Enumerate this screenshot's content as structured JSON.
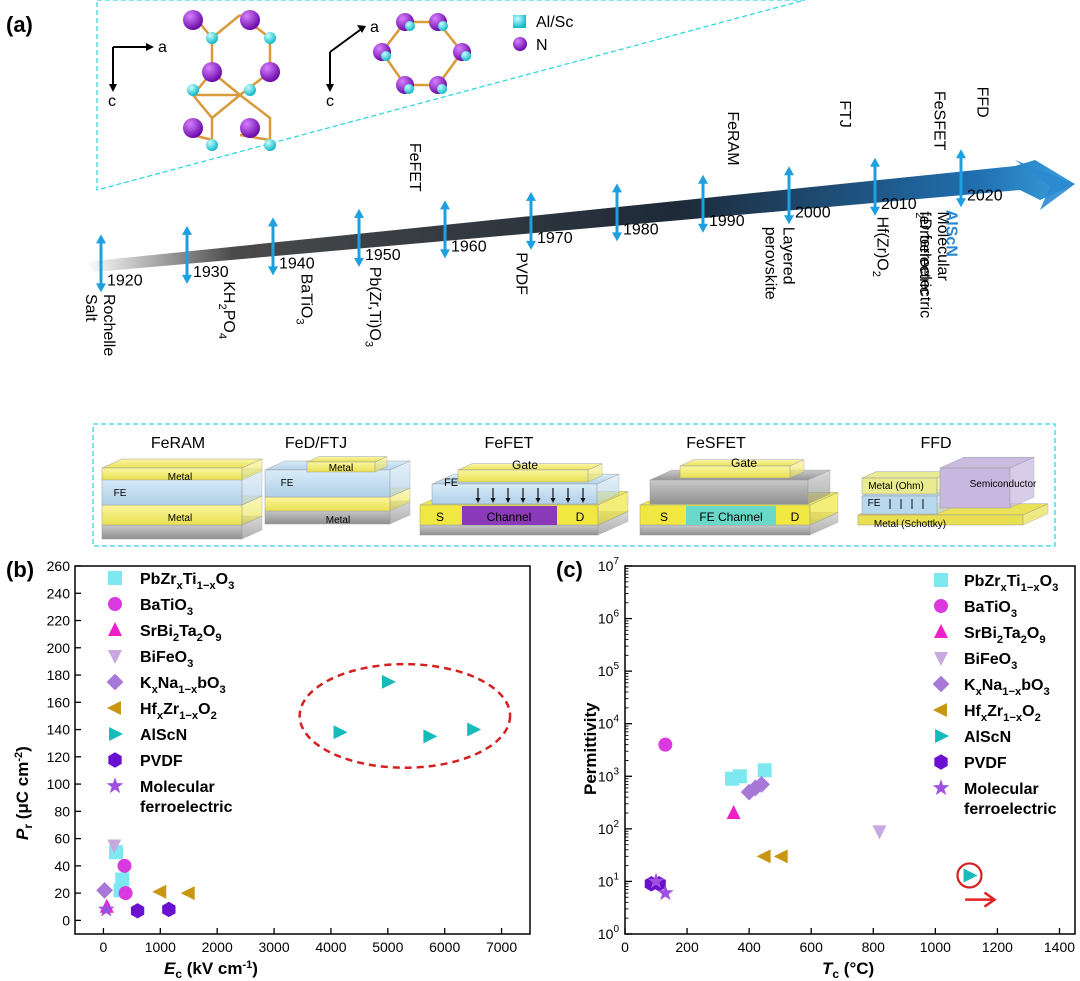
{
  "panel_a": {
    "label": "(a)",
    "crystal": {
      "axis_a": "a",
      "axis_c": "c",
      "legend": [
        {
          "name": "Al/Sc",
          "color": "#2fd8e0"
        },
        {
          "name": "N",
          "color": "#8a22c8"
        }
      ]
    },
    "timeline": {
      "years": [
        "1920",
        "1930",
        "1940",
        "1950",
        "1960",
        "1970",
        "1980",
        "1990",
        "2000",
        "2010",
        "2020"
      ],
      "above": [
        {
          "text": "FeFET",
          "year": 1955
        },
        {
          "text": "FeRAM",
          "year": 1992
        },
        {
          "text": "FTJ",
          "year": 2005
        },
        {
          "text": "FeSFET",
          "year": 2016
        },
        {
          "text": "FFD",
          "year": 2021
        }
      ],
      "below": [
        {
          "text": "Rochelle Salt",
          "year": 1920
        },
        {
          "text": "KH2PO4",
          "year": 1935
        },
        {
          "text": "BaTiO3",
          "year": 1944
        },
        {
          "text": "Pb(Zr,Ti)O3",
          "year": 1952
        },
        {
          "text": "PVDF",
          "year": 1969
        },
        {
          "text": "Layered perovskite",
          "year": 1999
        },
        {
          "text": "Hf(Zr)O2",
          "year": 2011
        },
        {
          "text": "2D ferroelectric",
          "year": 2016
        },
        {
          "text": "Molecular ferroelectric",
          "year": 2017
        },
        {
          "text": "AlScN",
          "year": 2019
        }
      ]
    },
    "devices": [
      {
        "title": "FeRAM",
        "top": "Metal",
        "mid": "FE",
        "bottom": "Metal"
      },
      {
        "title": "FeD/FTJ",
        "top": "Metal",
        "mid": "FE",
        "bottom": "Metal"
      },
      {
        "title": "FeFET",
        "gate": "Gate",
        "fe": "FE",
        "s": "S",
        "ch": "Channel",
        "d": "D"
      },
      {
        "title": "FeSFET",
        "gate": "Gate",
        "s": "S",
        "ch": "FE Channel",
        "d": "D"
      },
      {
        "title": "FFD",
        "top": "Metal  (Ohm)",
        "fe": "FE",
        "bottom": "Metal  (Schottky)",
        "semi": "Semiconductor"
      }
    ]
  },
  "panel_b": {
    "label": "(b)",
    "chart_data": {
      "type": "scatter",
      "xlabel_main": "E",
      "xlabel_sub": "c",
      "xlabel_unit": " (kV cm",
      "xlabel_exp": "-1",
      "xlabel_end": ")",
      "ylabel_main": "P",
      "ylabel_sub": "r",
      "ylabel_unit": " (μC cm",
      "ylabel_exp": "-2",
      "ylabel_end": ")",
      "xlim": [
        -500,
        7500
      ],
      "ylim": [
        -10,
        260
      ],
      "xticks": [
        0,
        1000,
        2000,
        3000,
        4000,
        5000,
        6000,
        7000
      ],
      "yticks": [
        0,
        20,
        40,
        60,
        80,
        100,
        120,
        140,
        160,
        180,
        200,
        220,
        240,
        260
      ],
      "series": [
        {
          "name": "PbZrxTi1-xO3",
          "marker": "square",
          "color": "#7ee8f0",
          "points": [
            [
              220,
              50
            ],
            [
              330,
              30
            ],
            [
              300,
              22
            ]
          ]
        },
        {
          "name": "BaTiO3",
          "marker": "circle",
          "color": "#d83ae0",
          "points": [
            [
              370,
              40
            ],
            [
              390,
              20
            ]
          ]
        },
        {
          "name": "SrBi2Ta2O9",
          "marker": "triangle-up",
          "color": "#f020c8",
          "points": [
            [
              60,
              10
            ]
          ]
        },
        {
          "name": "BiFeO3",
          "marker": "triangle-down",
          "color": "#c8a8e0",
          "points": [
            [
              190,
              55
            ]
          ]
        },
        {
          "name": "KxNa1-xbO3",
          "marker": "diamond",
          "color": "#a878d8",
          "points": [
            [
              20,
              22
            ]
          ]
        },
        {
          "name": "HfxZr1-xO2",
          "marker": "triangle-left",
          "color": "#c89610",
          "points": [
            [
              1000,
              21
            ],
            [
              1500,
              20
            ]
          ]
        },
        {
          "name": "AlScN",
          "marker": "triangle-right",
          "color": "#16bcbc",
          "points": [
            [
              4150,
              138
            ],
            [
              5000,
              175
            ],
            [
              5730,
              135
            ],
            [
              6500,
              140
            ]
          ]
        },
        {
          "name": "PVDF",
          "marker": "hexagon",
          "color": "#6a10d0",
          "points": [
            [
              600,
              7
            ],
            [
              1150,
              8
            ]
          ]
        },
        {
          "name": "Molecular ferroelectric",
          "marker": "star",
          "color": "#a050e0",
          "points": [
            [
              50,
              8
            ]
          ]
        }
      ],
      "highlight_ellipse": {
        "cx": 5300,
        "cy": 150,
        "rx": 1850,
        "ry": 38,
        "color": "#d42020"
      }
    }
  },
  "panel_c": {
    "label": "(c)",
    "chart_data": {
      "type": "scatter",
      "scale_y": "log",
      "xlabel_main": "T",
      "xlabel_sub": "c",
      "xlabel_unit": " (°C)",
      "ylabel": "Permittivity",
      "xlim": [
        0,
        1450
      ],
      "ylim_exp": [
        0,
        7
      ],
      "xticks": [
        0,
        200,
        400,
        600,
        800,
        1000,
        1200,
        1400
      ],
      "yticks_exp": [
        0,
        1,
        2,
        3,
        4,
        5,
        6,
        7
      ],
      "series": [
        {
          "name": "PbZrxTi1-xO3",
          "marker": "square",
          "color": "#7ee8f0",
          "points": [
            [
              345,
              900
            ],
            [
              370,
              1000
            ],
            [
              450,
              1300
            ]
          ]
        },
        {
          "name": "BaTiO3",
          "marker": "circle",
          "color": "#d83ae0",
          "points": [
            [
              130,
              4000
            ]
          ]
        },
        {
          "name": "SrBi2Ta2O9",
          "marker": "triangle-up",
          "color": "#f020c8",
          "points": [
            [
              350,
              200
            ]
          ]
        },
        {
          "name": "BiFeO3",
          "marker": "triangle-down",
          "color": "#c8a8e0",
          "points": [
            [
              820,
              90
            ]
          ]
        },
        {
          "name": "KxNa1-xbO3",
          "marker": "diamond",
          "color": "#a878d8",
          "points": [
            [
              400,
              500
            ],
            [
              420,
              600
            ],
            [
              440,
              700
            ]
          ]
        },
        {
          "name": "HfxZr1-xO2",
          "marker": "triangle-left",
          "color": "#c89610",
          "points": [
            [
              450,
              30
            ],
            [
              505,
              30
            ]
          ]
        },
        {
          "name": "AlScN",
          "marker": "triangle-right",
          "color": "#16bcbc",
          "points": [
            [
              1110,
              13
            ]
          ]
        },
        {
          "name": "PVDF",
          "marker": "hexagon",
          "color": "#6a10d0",
          "points": [
            [
              85,
              9
            ],
            [
              110,
              9
            ]
          ]
        },
        {
          "name": "Molecular ferroelectric",
          "marker": "star",
          "color": "#a050e0",
          "points": [
            [
              100,
              10
            ],
            [
              130,
              6
            ]
          ]
        }
      ],
      "highlight_circle": {
        "x": 1110,
        "y": 13,
        "color": "#d42020"
      },
      "arrow": {
        "x0": 1080,
        "x1": 1210,
        "y": 4.5,
        "color": "#e42020"
      }
    }
  }
}
